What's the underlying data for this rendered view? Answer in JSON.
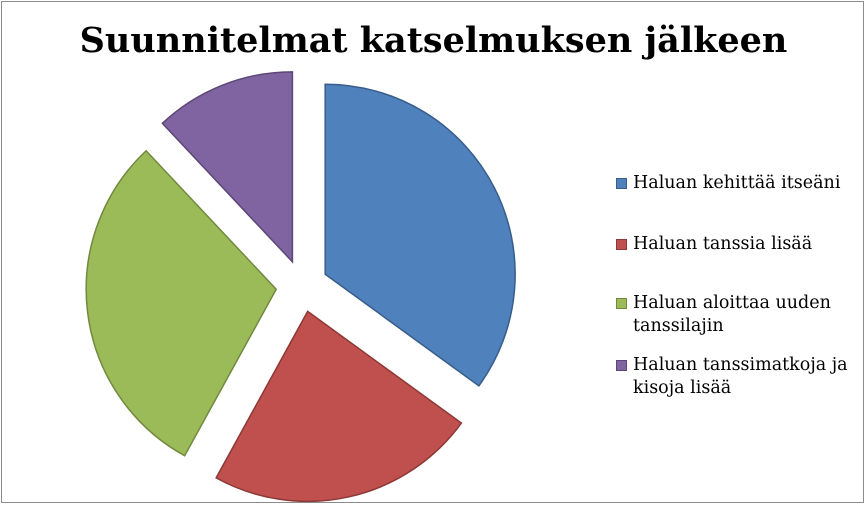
{
  "chart_data": {
    "type": "pie",
    "title": "Suunnitelmat katselmuksen jälkeen",
    "categories": [
      "Haluan kehittää itseäni",
      "Haluan tanssia lisää",
      "Haluan aloittaa uuden tanssilajin",
      "Haluan tanssimatkoja ja kisoja lisää"
    ],
    "values": [
      35,
      23,
      30,
      12
    ],
    "colors": [
      "#4f81bd",
      "#c0504d",
      "#9bbb59",
      "#8064a2"
    ],
    "stroke_colors": [
      "#385d8a",
      "#8c3836",
      "#71893f",
      "#5c4776"
    ],
    "exploded": true,
    "legend_position": "right"
  }
}
